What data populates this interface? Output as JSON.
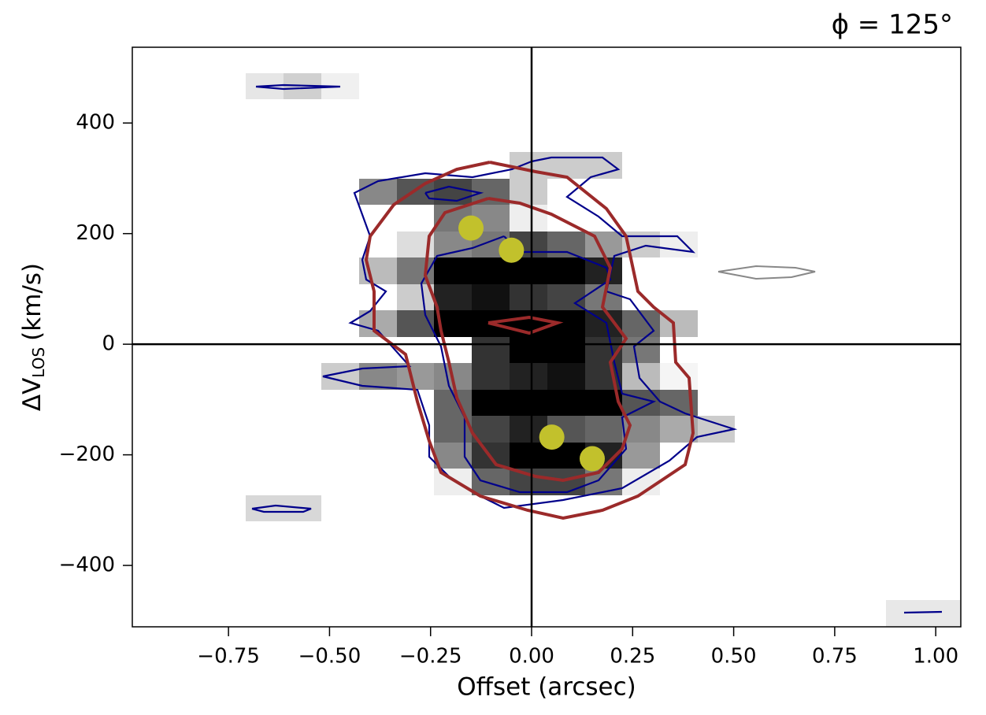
{
  "chart_data": {
    "type": "scatter",
    "title": "ϕ = 125°",
    "x_label": "Offset (arcsec)",
    "y_label": {
      "main": "ΔV",
      "subscript": "LOS",
      "unit": "(km/s)"
    },
    "x": [
      -0.15,
      -0.05,
      0.05,
      0.15
    ],
    "values": [
      210,
      170,
      -168,
      -207
    ],
    "color": "#c2c12c",
    "xlim": [
      -0.988,
      1.062
    ],
    "ylim": [
      -511,
      537
    ],
    "xticks": [
      {
        "value": -0.75,
        "label": "−0.75"
      },
      {
        "value": -0.5,
        "label": "−0.50"
      },
      {
        "value": -0.25,
        "label": "−0.25"
      },
      {
        "value": 0,
        "label": "0.00"
      },
      0.25,
      {
        "value": 0.5,
        "label": "0.50"
      },
      0.75,
      {
        "value": 1,
        "label": "1.00"
      }
    ],
    "yticks": [
      {
        "value": -400,
        "label": "−400"
      },
      {
        "value": -200,
        "label": "−200"
      },
      0,
      200,
      400
    ]
  }
}
